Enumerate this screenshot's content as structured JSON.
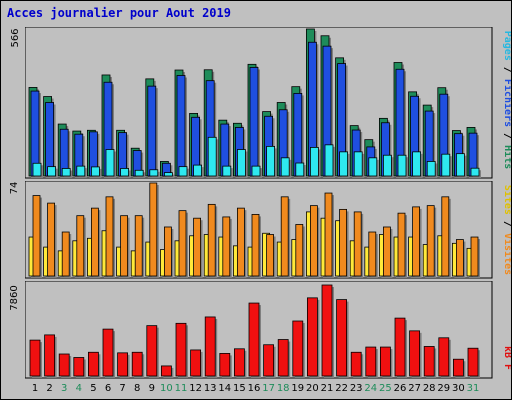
{
  "title": "Acces journalier pour Aout 2019",
  "colors": {
    "background": "#c0c0c0",
    "title": "#0000cc",
    "hits": "#1e8c5a",
    "files": "#1f4fe0",
    "pages": "#2ee8f0",
    "visits": "#f08a1e",
    "sites": "#ffe93a",
    "kb": "#f01010",
    "weekend_label": "#1e8c5a"
  },
  "panels": {
    "top": {
      "max_label": "566",
      "legend": [
        {
          "text": "Pages",
          "color": "#26b8e0"
        },
        {
          "text": "Fichiers",
          "color": "#1f4fe0"
        },
        {
          "text": "Hits",
          "color": "#1e8c5a"
        }
      ]
    },
    "middle": {
      "max_label": "74",
      "legend": [
        {
          "text": "Sites",
          "color": "#e0c000"
        },
        {
          "text": "Visites",
          "color": "#f08a1e"
        }
      ]
    },
    "bottom": {
      "max_label": "7860",
      "legend": [
        {
          "text": "kB F",
          "color": "#e01010"
        }
      ]
    }
  },
  "chart_data": [
    {
      "type": "bar",
      "categories": [
        "1",
        "2",
        "3",
        "4",
        "5",
        "6",
        "7",
        "8",
        "9",
        "10",
        "11",
        "12",
        "13",
        "14",
        "15",
        "16",
        "17",
        "18",
        "19",
        "20",
        "21",
        "22",
        "23",
        "24",
        "25",
        "26",
        "27",
        "28",
        "29",
        "30",
        "31"
      ],
      "ylim": [
        0,
        566
      ],
      "series": [
        {
          "name": "Hits",
          "values": [
            341,
            306,
            200,
            173,
            176,
            389,
            176,
            107,
            374,
            56,
            408,
            241,
            409,
            215,
            203,
            430,
            248,
            283,
            344,
            566,
            540,
            455,
            194,
            140,
            222,
            437,
            324,
            273,
            340,
            175,
            187
          ]
        },
        {
          "name": "Fichiers",
          "values": [
            327,
            283,
            180,
            161,
            170,
            361,
            167,
            98,
            346,
            49,
            387,
            226,
            367,
            200,
            187,
            418,
            230,
            255,
            318,
            515,
            500,
            433,
            177,
            112,
            205,
            411,
            307,
            250,
            315,
            163,
            165
          ]
        },
        {
          "name": "Pages",
          "values": [
            49,
            36,
            29,
            38,
            35,
            102,
            29,
            22,
            24,
            13,
            36,
            42,
            149,
            38,
            102,
            38,
            114,
            70,
            50,
            110,
            120,
            93,
            93,
            70,
            80,
            80,
            93,
            56,
            84,
            86,
            30
          ]
        }
      ]
    },
    {
      "type": "bar",
      "categories": [
        "1",
        "2",
        "3",
        "4",
        "5",
        "6",
        "7",
        "8",
        "9",
        "10",
        "11",
        "12",
        "13",
        "14",
        "15",
        "16",
        "17",
        "18",
        "19",
        "20",
        "21",
        "22",
        "23",
        "24",
        "25",
        "26",
        "27",
        "28",
        "29",
        "30",
        "31"
      ],
      "ylim": [
        0,
        74
      ],
      "series": [
        {
          "name": "Visites",
          "values": [
            64,
            58,
            35,
            48,
            54,
            63,
            48,
            48,
            74,
            39,
            52,
            46,
            57,
            47,
            54,
            49,
            33,
            63,
            41,
            56,
            66,
            53,
            51,
            35,
            39,
            50,
            55,
            56,
            63,
            29,
            31
          ]
        },
        {
          "name": "Sites",
          "values": [
            31,
            23,
            20,
            28,
            30,
            36,
            23,
            20,
            27,
            21,
            28,
            32,
            33,
            31,
            24,
            23,
            34,
            27,
            29,
            51,
            46,
            44,
            28,
            23,
            33,
            31,
            31,
            25,
            32,
            26,
            22
          ]
        }
      ]
    },
    {
      "type": "bar",
      "categories": [
        "1",
        "2",
        "3",
        "4",
        "5",
        "6",
        "7",
        "8",
        "9",
        "10",
        "11",
        "12",
        "13",
        "14",
        "15",
        "16",
        "17",
        "18",
        "19",
        "20",
        "21",
        "22",
        "23",
        "24",
        "25",
        "26",
        "27",
        "28",
        "29",
        "30",
        "31"
      ],
      "ylim": [
        0,
        7860
      ],
      "series": [
        {
          "name": "kB F",
          "values": [
            3100,
            3550,
            1900,
            1600,
            2050,
            4050,
            2000,
            2050,
            4350,
            870,
            4550,
            2250,
            5100,
            1950,
            2350,
            6300,
            2700,
            3150,
            4750,
            6750,
            7860,
            6600,
            2050,
            2500,
            2500,
            5000,
            3900,
            2550,
            3300,
            1450,
            2400
          ]
        }
      ]
    }
  ],
  "days": [
    "1",
    "2",
    "3",
    "4",
    "5",
    "6",
    "7",
    "8",
    "9",
    "10",
    "11",
    "12",
    "13",
    "14",
    "15",
    "16",
    "17",
    "18",
    "19",
    "20",
    "21",
    "22",
    "23",
    "24",
    "25",
    "26",
    "27",
    "28",
    "29",
    "30",
    "31"
  ],
  "weekend_days": [
    3,
    4,
    10,
    11,
    17,
    18,
    24,
    25,
    31
  ]
}
